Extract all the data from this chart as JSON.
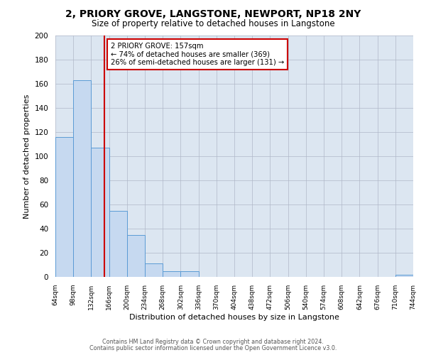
{
  "title": "2, PRIORY GROVE, LANGSTONE, NEWPORT, NP18 2NY",
  "subtitle": "Size of property relative to detached houses in Langstone",
  "xlabel": "Distribution of detached houses by size in Langstone",
  "ylabel": "Number of detached properties",
  "bin_edges": [
    64,
    98,
    132,
    166,
    200,
    234,
    268,
    302,
    336,
    370,
    404,
    438,
    472,
    506,
    540,
    574,
    608,
    642,
    676,
    710,
    744
  ],
  "bar_heights": [
    116,
    163,
    107,
    55,
    35,
    11,
    5,
    5,
    0,
    0,
    0,
    0,
    0,
    0,
    0,
    0,
    0,
    0,
    0,
    2
  ],
  "bar_color": "#c6d9f0",
  "bar_edge_color": "#5b9bd5",
  "bg_color": "#dce6f1",
  "property_line_x": 157,
  "property_line_color": "#cc0000",
  "annotation_text_line1": "2 PRIORY GROVE: 157sqm",
  "annotation_text_line2": "← 74% of detached houses are smaller (369)",
  "annotation_text_line3": "26% of semi-detached houses are larger (131) →",
  "annotation_box_color": "#ffffff",
  "annotation_border_color": "#cc0000",
  "ylim": [
    0,
    200
  ],
  "yticks": [
    0,
    20,
    40,
    60,
    80,
    100,
    120,
    140,
    160,
    180,
    200
  ],
  "grid_color": "#b0b8c8",
  "footer_line1": "Contains HM Land Registry data © Crown copyright and database right 2024.",
  "footer_line2": "Contains public sector information licensed under the Open Government Licence v3.0."
}
